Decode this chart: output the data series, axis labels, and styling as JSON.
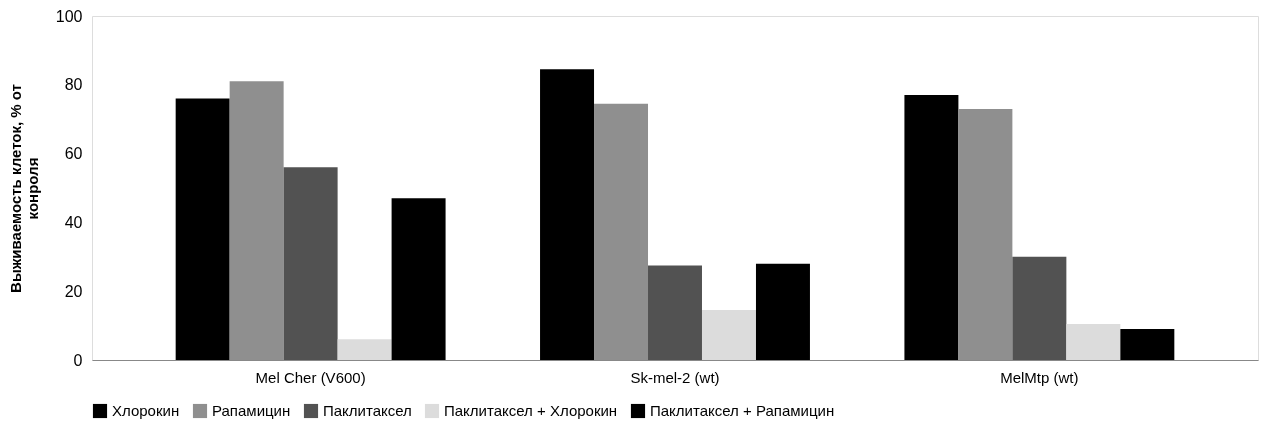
{
  "chart_data": {
    "type": "bar",
    "ylabel": "Выживаемость клеток, % от конроля",
    "categories": [
      "Mel Cher (V600)",
      "Sk-mel-2 (wt)",
      "MelMtp (wt)"
    ],
    "series": [
      {
        "name": "Хлорокин",
        "color": "#000000",
        "values": [
          76,
          84.5,
          77
        ]
      },
      {
        "name": "Рапамицин",
        "color": "#8f8f8f",
        "values": [
          81,
          74.5,
          73
        ]
      },
      {
        "name": "Паклитаксел",
        "color": "#525252",
        "values": [
          56,
          27.5,
          30
        ]
      },
      {
        "name": "Паклитаксел + Хлорокин",
        "color": "#dcdcdc",
        "values": [
          6,
          14.5,
          10.5
        ]
      },
      {
        "name": "Паклитаксел + Рапамицин",
        "color": "#000000",
        "values": [
          47,
          28,
          9
        ]
      }
    ],
    "ylim": [
      0,
      100
    ],
    "yticks": [
      0,
      20,
      40,
      60,
      80,
      100
    ],
    "grid": false,
    "legend": "bottom"
  }
}
